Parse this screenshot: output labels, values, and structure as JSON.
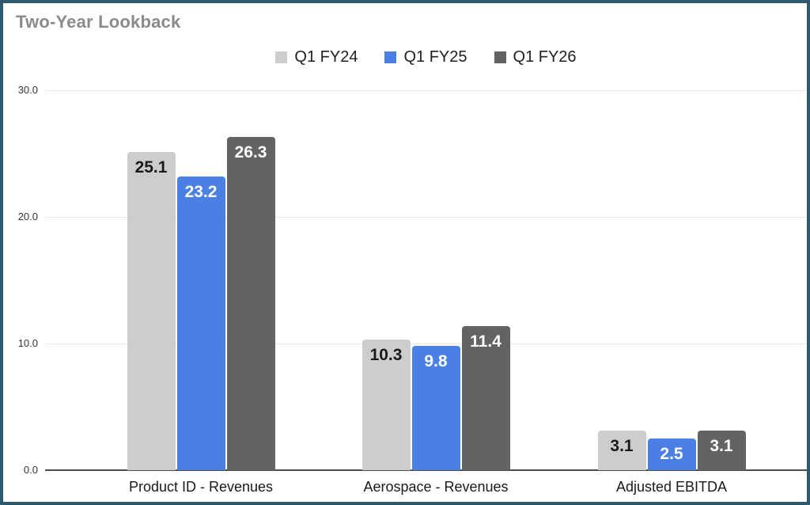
{
  "title": "Two-Year Lookback",
  "colors": {
    "card_border": "#2d5a6e",
    "background": "#ffffff",
    "title_text": "#8b8b8b",
    "grid": "#e8e8e8",
    "axis": "#4d4d4d",
    "tick_text": "#333333",
    "category_text": "#1a1a1a"
  },
  "chart_data": {
    "type": "bar",
    "title": "Two-Year Lookback",
    "categories": [
      "Product ID - Revenues",
      "Aerospace - Revenues",
      "Adjusted EBITDA"
    ],
    "series": [
      {
        "name": "Q1 FY24",
        "color": "#cdcdcd",
        "label_color": "#1a1a1a",
        "values": [
          25.1,
          10.3,
          3.1
        ]
      },
      {
        "name": "Q1 FY25",
        "color": "#4a80e4",
        "label_color": "#ffffff",
        "values": [
          23.2,
          9.8,
          2.5
        ]
      },
      {
        "name": "Q1 FY26",
        "color": "#636363",
        "label_color": "#ffffff",
        "values": [
          26.3,
          11.4,
          3.1
        ]
      }
    ],
    "value_labels": [
      [
        "25.1",
        "10.3",
        "3.1"
      ],
      [
        "23.2",
        "9.8",
        "2.5"
      ],
      [
        "26.3",
        "11.4",
        "3.1"
      ]
    ],
    "y_ticks": [
      0,
      10,
      20,
      30
    ],
    "y_tick_labels": [
      "0.0",
      "10.0",
      "20.0",
      "30.0"
    ],
    "ylim": [
      0,
      30
    ],
    "grid": true,
    "legend_position": "top",
    "xlabel": "",
    "ylabel": ""
  }
}
